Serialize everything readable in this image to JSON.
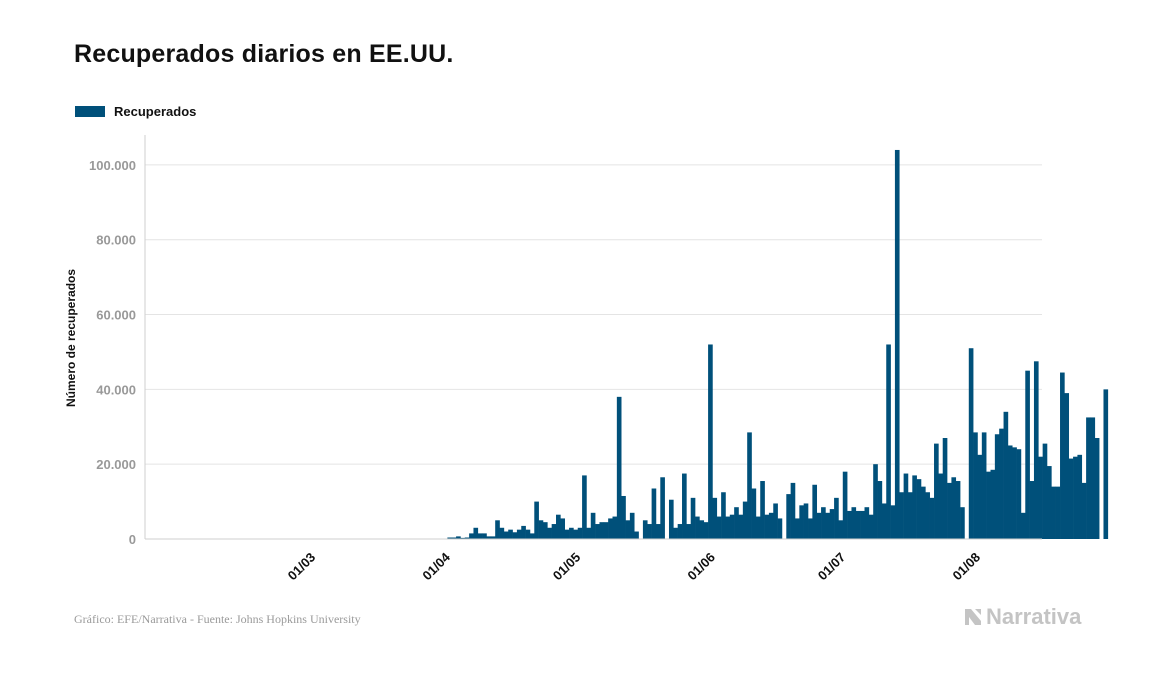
{
  "title": "Recuperados diarios en EE.UU.",
  "source": "Gráfico: EFE/Narrativa - Fuente: Johns Hopkins University",
  "brand": "Narrativa",
  "colors": {
    "bar": "#00507a",
    "grid": "#e4e4e4",
    "axis": "#cfcfcf",
    "brand": "#c4c4c4"
  },
  "chart_data": {
    "type": "bar",
    "xlabel": "",
    "ylabel": "Número de recuperados",
    "ylim": [
      0,
      108000
    ],
    "yticks": [
      0,
      20000,
      40000,
      60000,
      80000,
      100000
    ],
    "ytick_labels": [
      "0",
      "20.000",
      "40.000",
      "60.000",
      "80.000",
      "100.000"
    ],
    "xticks": [
      "01/03",
      "01/04",
      "01/05",
      "01/06",
      "01/07",
      "01/08"
    ],
    "grid": true,
    "legend": "top-left",
    "x_start": "2020-02-01",
    "series": [
      {
        "name": "Recuperados",
        "values": [
          0,
          0,
          0,
          0,
          0,
          0,
          0,
          0,
          0,
          0,
          0,
          0,
          0,
          0,
          0,
          0,
          0,
          0,
          0,
          0,
          0,
          0,
          0,
          0,
          0,
          0,
          0,
          0,
          0,
          0,
          0,
          0,
          0,
          0,
          0,
          0,
          0,
          0,
          0,
          0,
          0,
          0,
          0,
          0,
          0,
          0,
          0,
          0,
          0,
          0,
          0,
          0,
          0,
          0,
          0,
          0,
          0,
          0,
          0,
          0,
          100,
          100,
          400,
          400,
          700,
          300,
          400,
          1500,
          3000,
          1500,
          1500,
          700,
          700,
          5000,
          3000,
          2000,
          2500,
          1800,
          2500,
          3500,
          2500,
          1500,
          10000,
          5000,
          4500,
          3000,
          4000,
          6500,
          5500,
          2500,
          3000,
          2500,
          3000,
          17000,
          3000,
          7000,
          4000,
          4500,
          4500,
          5500,
          6000,
          38000,
          11500,
          5000,
          7000,
          2000,
          0,
          5000,
          4000,
          13500,
          4000,
          16500,
          0,
          10500,
          3000,
          4000,
          17500,
          4000,
          11000,
          6000,
          5000,
          4500,
          52000,
          11000,
          6000,
          12500,
          6000,
          6500,
          8500,
          6500,
          10000,
          28500,
          13500,
          6000,
          15500,
          6500,
          7000,
          9500,
          5500,
          0,
          12000,
          15000,
          5500,
          9000,
          9500,
          5500,
          14500,
          7000,
          8500,
          7000,
          8000,
          11000,
          5000,
          18000,
          7500,
          8500,
          7500,
          7500,
          8500,
          6500,
          20000,
          15500,
          9500,
          52000,
          9000,
          104000,
          12500,
          17500,
          12500,
          17000,
          16000,
          14000,
          12500,
          11000,
          25500,
          17500,
          27000,
          15000,
          16500,
          15500,
          8500,
          0,
          51000,
          28500,
          22500,
          28500,
          18000,
          18500,
          28000,
          29500,
          34000,
          25000,
          24500,
          24000,
          7000,
          45000,
          15500,
          47500,
          22000,
          25500,
          19500,
          14000,
          14000,
          44500,
          39000,
          21500,
          22000,
          22500,
          15000,
          32500,
          32500,
          27000,
          0,
          40000
        ]
      }
    ]
  }
}
